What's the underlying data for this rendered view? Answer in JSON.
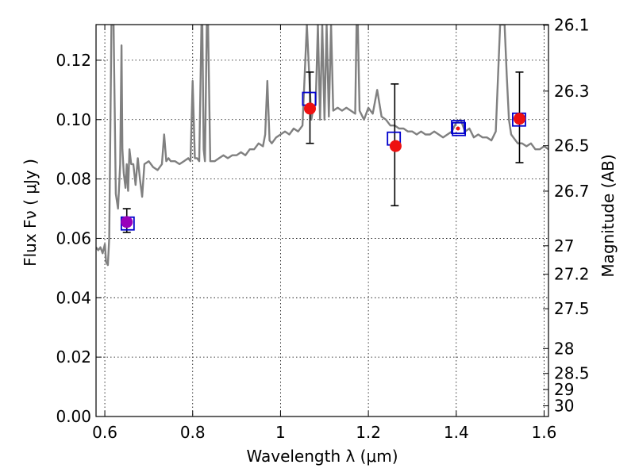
{
  "chart_data": {
    "type": "scatter",
    "xlabel": "Wavelength  λ (μm)",
    "ylabel_left": "Flux  Fν  ( μJy )",
    "ylabel_right": "Magnitude (AB)",
    "xlim": [
      0.58,
      1.61
    ],
    "ylim": [
      0.0,
      0.132
    ],
    "grid": true,
    "x_ticks": [
      {
        "value": 0.6,
        "label": "0.6"
      },
      {
        "value": 0.8,
        "label": "0.8"
      },
      {
        "value": 1.0,
        "label": "1"
      },
      {
        "value": 1.2,
        "label": "1.2"
      },
      {
        "value": 1.4,
        "label": "1.4"
      },
      {
        "value": 1.6,
        "label": "1.6"
      }
    ],
    "y_ticks": [
      {
        "value": 0.0,
        "label": "0.00"
      },
      {
        "value": 0.02,
        "label": "0.02"
      },
      {
        "value": 0.04,
        "label": "0.04"
      },
      {
        "value": 0.06,
        "label": "0.06"
      },
      {
        "value": 0.08,
        "label": "0.08"
      },
      {
        "value": 0.1,
        "label": "0.10"
      },
      {
        "value": 0.12,
        "label": "0.12"
      }
    ],
    "right_ticks": [
      {
        "flux": 0.1318,
        "label": "26.1"
      },
      {
        "flux": 0.1096,
        "label": "26.3"
      },
      {
        "flux": 0.0912,
        "label": "26.5"
      },
      {
        "flux": 0.0759,
        "label": "26.7"
      },
      {
        "flux": 0.0575,
        "label": "27"
      },
      {
        "flux": 0.0479,
        "label": "27.2"
      },
      {
        "flux": 0.0363,
        "label": "27.5"
      },
      {
        "flux": 0.0229,
        "label": "28"
      },
      {
        "flux": 0.0145,
        "label": "28.5"
      },
      {
        "flux": 0.0091,
        "label": "29"
      },
      {
        "flux": 0.0036,
        "label": "30"
      }
    ],
    "model_spectrum": {
      "color": "#808080",
      "x": [
        0.58,
        0.585,
        0.59,
        0.595,
        0.6,
        0.603,
        0.607,
        0.61,
        0.615,
        0.62,
        0.625,
        0.63,
        0.635,
        0.638,
        0.64,
        0.643,
        0.647,
        0.65,
        0.653,
        0.656,
        0.66,
        0.665,
        0.67,
        0.675,
        0.68,
        0.685,
        0.69,
        0.7,
        0.71,
        0.72,
        0.73,
        0.735,
        0.74,
        0.745,
        0.75,
        0.76,
        0.77,
        0.78,
        0.79,
        0.795,
        0.8,
        0.805,
        0.81,
        0.815,
        0.82,
        0.822,
        0.825,
        0.828,
        0.832,
        0.835,
        0.84,
        0.85,
        0.86,
        0.87,
        0.88,
        0.89,
        0.9,
        0.91,
        0.92,
        0.93,
        0.94,
        0.95,
        0.96,
        0.965,
        0.97,
        0.975,
        0.98,
        0.99,
        1.0,
        1.01,
        1.02,
        1.03,
        1.04,
        1.05,
        1.06,
        1.07,
        1.075,
        1.08,
        1.085,
        1.09,
        1.095,
        1.1,
        1.105,
        1.11,
        1.115,
        1.12,
        1.13,
        1.14,
        1.15,
        1.16,
        1.17,
        1.173,
        1.176,
        1.18,
        1.19,
        1.2,
        1.21,
        1.22,
        1.23,
        1.24,
        1.25,
        1.26,
        1.27,
        1.28,
        1.29,
        1.3,
        1.31,
        1.32,
        1.33,
        1.34,
        1.35,
        1.36,
        1.37,
        1.38,
        1.39,
        1.4,
        1.41,
        1.42,
        1.43,
        1.44,
        1.45,
        1.46,
        1.47,
        1.48,
        1.49,
        1.5,
        1.51,
        1.515,
        1.52,
        1.525,
        1.53,
        1.54,
        1.55,
        1.56,
        1.57,
        1.58,
        1.59,
        1.6,
        1.61
      ],
      "y": [
        0.057,
        0.056,
        0.057,
        0.055,
        0.058,
        0.052,
        0.051,
        0.06,
        0.132,
        0.132,
        0.075,
        0.07,
        0.085,
        0.125,
        0.09,
        0.082,
        0.077,
        0.085,
        0.076,
        0.09,
        0.085,
        0.085,
        0.078,
        0.087,
        0.08,
        0.074,
        0.085,
        0.086,
        0.084,
        0.083,
        0.085,
        0.095,
        0.086,
        0.087,
        0.086,
        0.086,
        0.085,
        0.086,
        0.087,
        0.086,
        0.113,
        0.087,
        0.087,
        0.086,
        0.132,
        0.132,
        0.09,
        0.086,
        0.132,
        0.132,
        0.086,
        0.086,
        0.087,
        0.088,
        0.087,
        0.088,
        0.088,
        0.089,
        0.088,
        0.09,
        0.09,
        0.092,
        0.091,
        0.095,
        0.113,
        0.093,
        0.092,
        0.094,
        0.095,
        0.096,
        0.095,
        0.097,
        0.096,
        0.098,
        0.132,
        0.1,
        0.104,
        0.105,
        0.132,
        0.1,
        0.132,
        0.1,
        0.132,
        0.101,
        0.132,
        0.103,
        0.104,
        0.103,
        0.104,
        0.103,
        0.102,
        0.132,
        0.132,
        0.103,
        0.1,
        0.104,
        0.102,
        0.11,
        0.101,
        0.1,
        0.098,
        0.098,
        0.097,
        0.097,
        0.096,
        0.096,
        0.095,
        0.096,
        0.095,
        0.095,
        0.096,
        0.095,
        0.094,
        0.095,
        0.096,
        0.099,
        0.1,
        0.096,
        0.097,
        0.094,
        0.095,
        0.094,
        0.094,
        0.093,
        0.096,
        0.132,
        0.132,
        0.115,
        0.1,
        0.095,
        0.094,
        0.092,
        0.092,
        0.091,
        0.092,
        0.09,
        0.09,
        0.091,
        0.09
      ]
    },
    "error_points": {
      "color": "#000000",
      "points": [
        {
          "x": 0.65,
          "y": 0.066,
          "err_low": 0.062,
          "err_high": 0.07
        },
        {
          "x": 1.067,
          "y": 0.1045,
          "err_low": 0.092,
          "err_high": 0.116
        },
        {
          "x": 1.26,
          "y": 0.092,
          "err_low": 0.071,
          "err_high": 0.112
        },
        {
          "x": 1.544,
          "y": 0.1,
          "err_low": 0.0855,
          "err_high": 0.116
        }
      ]
    },
    "observed_points": {
      "color": "#ee1111",
      "points": [
        {
          "x": 0.65,
          "y": 0.0655,
          "color": "#9900bb"
        },
        {
          "x": 1.067,
          "y": 0.1037
        },
        {
          "x": 1.262,
          "y": 0.0911
        },
        {
          "x": 1.544,
          "y": 0.1003
        },
        {
          "x": 1.404,
          "y": 0.097,
          "small": true
        }
      ]
    },
    "model_squares": {
      "color": "#0000cc",
      "points": [
        {
          "x": 0.652,
          "y": 0.065
        },
        {
          "x": 1.065,
          "y": 0.107
        },
        {
          "x": 1.258,
          "y": 0.0936
        },
        {
          "x": 1.406,
          "y": 0.0968
        },
        {
          "x": 1.543,
          "y": 0.1
        },
        {
          "x": 1.404,
          "y": 0.0975
        }
      ]
    }
  }
}
